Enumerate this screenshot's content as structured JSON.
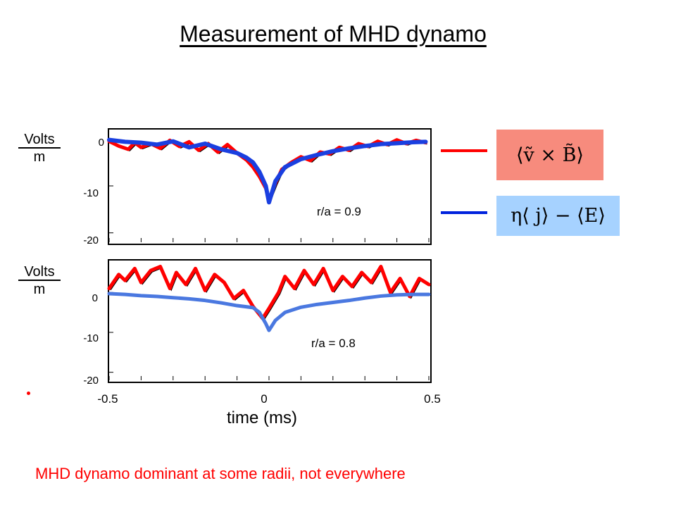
{
  "title": "Measurement of MHD dynamo",
  "conclusion": "MHD dynamo dominant at some radii, not everywhere",
  "colors": {
    "red": "#ff0000",
    "blue_top": "#1a3fe0",
    "blue_bottom": "#4a78e0",
    "red_box": "#f78b7d",
    "blue_box": "#a6d2ff"
  },
  "legend": {
    "red_formula": "⟨ṽ × B̃⟩",
    "blue_formula": "η⟨ j⟩ − ⟨E⟩"
  },
  "chart_data": [
    {
      "type": "line",
      "ylabel_top": "Volts",
      "ylabel_bottom": "m",
      "yticks": [
        "0",
        "-10",
        "-20"
      ],
      "ylim": [
        -22,
        2
      ],
      "xlim": [
        -0.5,
        0.5
      ],
      "annotation": "r/a = 0.9",
      "series": [
        {
          "color": "red",
          "x": [
            -0.5,
            -0.47,
            -0.44,
            -0.42,
            -0.4,
            -0.37,
            -0.34,
            -0.31,
            -0.28,
            -0.25,
            -0.22,
            -0.19,
            -0.16,
            -0.13,
            -0.1,
            -0.07,
            -0.05,
            -0.03,
            -0.01,
            0.0,
            0.02,
            0.04,
            0.07,
            0.1,
            0.13,
            0.16,
            0.19,
            0.22,
            0.25,
            0.28,
            0.31,
            0.34,
            0.37,
            0.4,
            0.43,
            0.46,
            0.49
          ],
          "y": [
            -0.5,
            -1.5,
            -2.2,
            -0.8,
            -1.8,
            -1.0,
            -2.0,
            -0.3,
            -1.6,
            -0.6,
            -2.4,
            -1.0,
            -2.8,
            -1.2,
            -3.0,
            -4.5,
            -6.0,
            -8.0,
            -10.5,
            -13.0,
            -9.5,
            -6.5,
            -5.0,
            -3.8,
            -4.6,
            -2.8,
            -3.2,
            -1.8,
            -2.4,
            -1.0,
            -1.6,
            -0.5,
            -1.2,
            -0.2,
            -1.0,
            -0.3,
            -0.8
          ]
        },
        {
          "color": "blue_top",
          "x": [
            -0.5,
            -0.45,
            -0.4,
            -0.35,
            -0.3,
            -0.25,
            -0.2,
            -0.15,
            -0.1,
            -0.07,
            -0.05,
            -0.03,
            -0.01,
            0.0,
            0.02,
            0.05,
            0.1,
            0.15,
            0.2,
            0.25,
            0.3,
            0.35,
            0.4,
            0.45,
            0.49
          ],
          "y": [
            -0.2,
            -0.6,
            -0.8,
            -1.2,
            -0.5,
            -1.8,
            -1.0,
            -2.2,
            -3.0,
            -4.0,
            -5.0,
            -7.0,
            -10.0,
            -13.5,
            -9.0,
            -6.0,
            -4.3,
            -3.4,
            -2.6,
            -2.0,
            -1.5,
            -1.1,
            -0.9,
            -0.7,
            -0.6
          ]
        }
      ]
    },
    {
      "type": "line",
      "ylabel_top": "Volts",
      "ylabel_bottom": "m",
      "yticks": [
        "0",
        "-10",
        "-20"
      ],
      "ylim": [
        -22,
        8
      ],
      "xlim": [
        -0.5,
        0.5
      ],
      "xticks": [
        "-0.5",
        "0",
        "0.5"
      ],
      "xlabel": "time (ms)",
      "annotation": "r/a = 0.8",
      "series": [
        {
          "color": "red",
          "x": [
            -0.5,
            -0.47,
            -0.45,
            -0.42,
            -0.4,
            -0.37,
            -0.34,
            -0.31,
            -0.29,
            -0.26,
            -0.23,
            -0.2,
            -0.17,
            -0.14,
            -0.11,
            -0.08,
            -0.05,
            -0.02,
            0.0,
            0.03,
            0.05,
            0.08,
            0.11,
            0.14,
            0.17,
            0.2,
            0.23,
            0.26,
            0.29,
            0.32,
            0.35,
            0.38,
            0.41,
            0.44,
            0.47,
            0.5
          ],
          "y": [
            1.0,
            4.5,
            3.0,
            6.0,
            2.5,
            5.5,
            6.5,
            1.0,
            5.0,
            2.0,
            6.0,
            0.5,
            4.5,
            2.5,
            -1.5,
            0.5,
            -3.5,
            -6.5,
            -4.0,
            0.0,
            4.0,
            1.0,
            5.5,
            2.0,
            6.0,
            0.5,
            4.0,
            1.5,
            5.0,
            2.5,
            6.5,
            0.0,
            3.5,
            -1.0,
            3.5,
            2.0
          ]
        },
        {
          "color": "blue_bottom",
          "x": [
            -0.5,
            -0.45,
            -0.4,
            -0.35,
            -0.3,
            -0.25,
            -0.2,
            -0.15,
            -0.1,
            -0.08,
            -0.05,
            -0.03,
            -0.01,
            0.0,
            0.02,
            0.05,
            0.1,
            0.15,
            0.2,
            0.25,
            0.3,
            0.35,
            0.4,
            0.45,
            0.5
          ],
          "y": [
            -0.3,
            -0.5,
            -0.8,
            -1.0,
            -1.3,
            -1.6,
            -2.0,
            -2.6,
            -3.3,
            -3.5,
            -3.8,
            -5.0,
            -7.8,
            -9.5,
            -7.0,
            -5.0,
            -3.7,
            -3.0,
            -2.5,
            -2.0,
            -1.4,
            -0.9,
            -0.6,
            -0.5,
            -0.5
          ]
        }
      ]
    }
  ]
}
